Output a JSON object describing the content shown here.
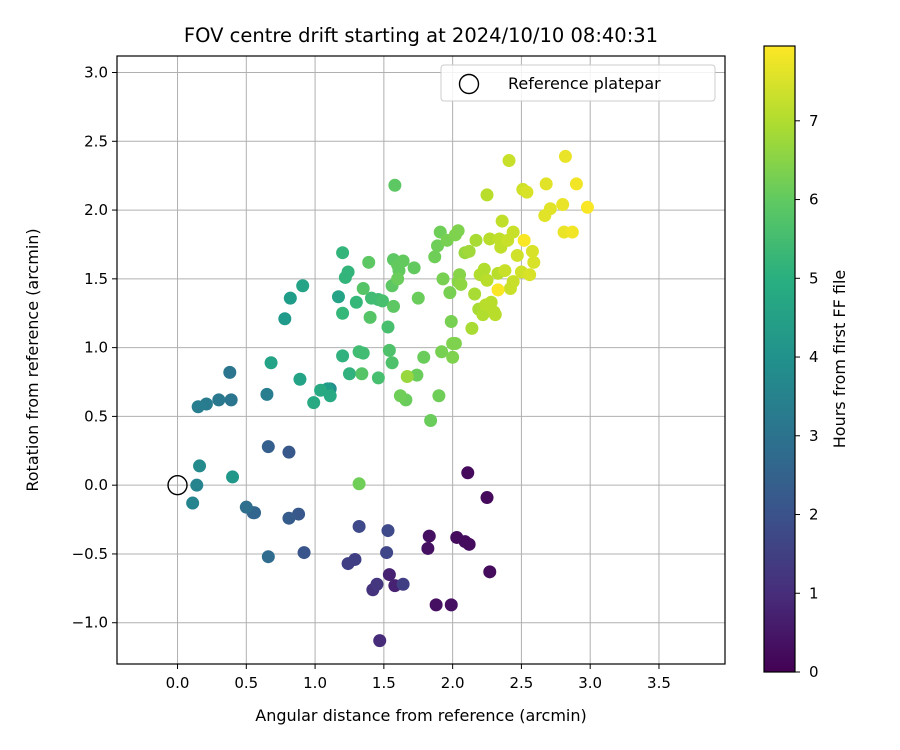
{
  "chart_data": {
    "type": "scatter",
    "title": "FOV centre drift starting at 2024/10/10 08:40:31",
    "xlabel": "Angular distance from reference (arcmin)",
    "ylabel": "Rotation from reference (arcmin)",
    "xlim": [
      -0.44,
      3.98
    ],
    "ylim": [
      -1.3,
      3.12
    ],
    "x_ticks": [
      0.0,
      0.5,
      1.0,
      1.5,
      2.0,
      2.5,
      3.0,
      3.5
    ],
    "x_tick_labels": [
      "0.0",
      "0.5",
      "1.0",
      "1.5",
      "2.0",
      "2.5",
      "3.0",
      "3.5"
    ],
    "y_ticks": [
      -1.0,
      -0.5,
      0.0,
      0.5,
      1.0,
      1.5,
      2.0,
      2.5,
      3.0
    ],
    "y_tick_labels": [
      "−1.0",
      "−0.5",
      "0.0",
      "0.5",
      "1.0",
      "1.5",
      "2.0",
      "2.5",
      "3.0"
    ],
    "grid": true,
    "legend": {
      "position": "upper-right",
      "entries": [
        "Reference platepar"
      ]
    },
    "colormap": "viridis",
    "colorbar": {
      "label": "Hours from first FF file",
      "min": 0,
      "max": 7.95,
      "ticks": [
        0,
        1,
        2,
        3,
        4,
        5,
        6,
        7
      ]
    },
    "reference_point": {
      "x": 0.0,
      "y": 0.0,
      "label": "Reference platepar"
    },
    "points": [
      {
        "x": 2.11,
        "y": 0.09,
        "h": 0.2
      },
      {
        "x": 2.25,
        "y": -0.09,
        "h": 0.2
      },
      {
        "x": 2.27,
        "y": -0.63,
        "h": 0.25
      },
      {
        "x": 2.03,
        "y": -0.38,
        "h": 0.25
      },
      {
        "x": 2.09,
        "y": -0.41,
        "h": 0.25
      },
      {
        "x": 2.12,
        "y": -0.43,
        "h": 0.25
      },
      {
        "x": 1.83,
        "y": -0.37,
        "h": 0.35
      },
      {
        "x": 1.82,
        "y": -0.46,
        "h": 0.35
      },
      {
        "x": 1.88,
        "y": -0.87,
        "h": 0.35
      },
      {
        "x": 1.99,
        "y": -0.87,
        "h": 0.35
      },
      {
        "x": 1.58,
        "y": -0.73,
        "h": 0.75
      },
      {
        "x": 1.54,
        "y": -0.65,
        "h": 0.75
      },
      {
        "x": 1.47,
        "y": -1.13,
        "h": 1.0
      },
      {
        "x": 1.42,
        "y": -0.76,
        "h": 1.15
      },
      {
        "x": 1.45,
        "y": -0.72,
        "h": 1.25
      },
      {
        "x": 1.29,
        "y": -0.54,
        "h": 1.5
      },
      {
        "x": 1.24,
        "y": -0.57,
        "h": 1.5
      },
      {
        "x": 1.64,
        "y": -0.72,
        "h": 1.5
      },
      {
        "x": 1.52,
        "y": -0.49,
        "h": 1.7
      },
      {
        "x": 1.32,
        "y": -0.3,
        "h": 1.8
      },
      {
        "x": 1.53,
        "y": -0.33,
        "h": 1.8
      },
      {
        "x": 0.92,
        "y": -0.49,
        "h": 2.1
      },
      {
        "x": 0.81,
        "y": 0.24,
        "h": 2.2
      },
      {
        "x": 0.88,
        "y": -0.21,
        "h": 2.2
      },
      {
        "x": 0.81,
        "y": -0.24,
        "h": 2.3
      },
      {
        "x": 0.66,
        "y": 0.28,
        "h": 2.4
      },
      {
        "x": 0.56,
        "y": -0.2,
        "h": 2.6
      },
      {
        "x": 0.55,
        "y": -0.2,
        "h": 2.6
      },
      {
        "x": 0.66,
        "y": -0.52,
        "h": 2.8
      },
      {
        "x": 0.5,
        "y": -0.16,
        "h": 2.9
      },
      {
        "x": 0.38,
        "y": 0.82,
        "h": 3.1
      },
      {
        "x": 0.39,
        "y": 0.62,
        "h": 3.1
      },
      {
        "x": 0.3,
        "y": 0.62,
        "h": 3.2
      },
      {
        "x": 0.21,
        "y": 0.59,
        "h": 3.3
      },
      {
        "x": 0.15,
        "y": 0.57,
        "h": 3.4
      },
      {
        "x": 0.65,
        "y": 0.66,
        "h": 3.4
      },
      {
        "x": 0.11,
        "y": -0.13,
        "h": 3.6
      },
      {
        "x": 0.14,
        "y": 0.0,
        "h": 3.6
      },
      {
        "x": 0.16,
        "y": 0.14,
        "h": 3.8
      },
      {
        "x": 0.4,
        "y": 0.06,
        "h": 4.2
      },
      {
        "x": 0.78,
        "y": 1.21,
        "h": 4.3
      },
      {
        "x": 0.82,
        "y": 1.36,
        "h": 4.4
      },
      {
        "x": 1.11,
        "y": 0.7,
        "h": 3.9
      },
      {
        "x": 1.09,
        "y": 0.7,
        "h": 4.4
      },
      {
        "x": 0.68,
        "y": 0.89,
        "h": 4.6
      },
      {
        "x": 0.91,
        "y": 1.45,
        "h": 4.6
      },
      {
        "x": 0.89,
        "y": 0.77,
        "h": 4.6
      },
      {
        "x": 1.17,
        "y": 1.37,
        "h": 4.6
      },
      {
        "x": 1.04,
        "y": 0.69,
        "h": 4.8
      },
      {
        "x": 0.99,
        "y": 0.6,
        "h": 4.8
      },
      {
        "x": 1.11,
        "y": 0.65,
        "h": 4.8
      },
      {
        "x": 1.2,
        "y": 0.94,
        "h": 5.1
      },
      {
        "x": 1.25,
        "y": 0.81,
        "h": 5.1
      },
      {
        "x": 1.2,
        "y": 1.69,
        "h": 5.2
      },
      {
        "x": 1.22,
        "y": 1.51,
        "h": 5.2
      },
      {
        "x": 1.24,
        "y": 1.55,
        "h": 5.2
      },
      {
        "x": 1.2,
        "y": 1.25,
        "h": 5.3
      },
      {
        "x": 1.3,
        "y": 1.33,
        "h": 5.3
      },
      {
        "x": 1.32,
        "y": 0.97,
        "h": 5.5
      },
      {
        "x": 1.35,
        "y": 0.96,
        "h": 5.5
      },
      {
        "x": 1.41,
        "y": 1.36,
        "h": 5.5
      },
      {
        "x": 1.46,
        "y": 1.35,
        "h": 5.5
      },
      {
        "x": 1.46,
        "y": 0.78,
        "h": 5.6
      },
      {
        "x": 1.49,
        "y": 1.34,
        "h": 5.6
      },
      {
        "x": 1.53,
        "y": 1.15,
        "h": 5.6
      },
      {
        "x": 1.54,
        "y": 0.98,
        "h": 5.7
      },
      {
        "x": 1.56,
        "y": 0.89,
        "h": 5.7
      },
      {
        "x": 1.34,
        "y": 0.81,
        "h": 5.8
      },
      {
        "x": 1.4,
        "y": 1.22,
        "h": 5.8
      },
      {
        "x": 1.35,
        "y": 1.43,
        "h": 5.8
      },
      {
        "x": 1.39,
        "y": 1.62,
        "h": 5.9
      },
      {
        "x": 1.58,
        "y": 2.18,
        "h": 5.9
      },
      {
        "x": 1.56,
        "y": 1.45,
        "h": 5.9
      },
      {
        "x": 1.57,
        "y": 1.3,
        "h": 5.9
      },
      {
        "x": 1.57,
        "y": 1.64,
        "h": 5.9
      },
      {
        "x": 1.61,
        "y": 1.56,
        "h": 6.0
      },
      {
        "x": 1.6,
        "y": 1.6,
        "h": 6.0
      },
      {
        "x": 1.64,
        "y": 1.63,
        "h": 6.0
      },
      {
        "x": 1.72,
        "y": 1.58,
        "h": 6.0
      },
      {
        "x": 1.6,
        "y": 1.5,
        "h": 6.1
      },
      {
        "x": 1.75,
        "y": 1.36,
        "h": 6.1
      },
      {
        "x": 1.79,
        "y": 0.93,
        "h": 6.1
      },
      {
        "x": 1.84,
        "y": 0.47,
        "h": 6.1
      },
      {
        "x": 1.74,
        "y": 0.8,
        "h": 6.1
      },
      {
        "x": 1.66,
        "y": 0.62,
        "h": 6.1
      },
      {
        "x": 1.62,
        "y": 0.65,
        "h": 6.2
      },
      {
        "x": 1.32,
        "y": 0.01,
        "h": 6.2
      },
      {
        "x": 1.9,
        "y": 0.65,
        "h": 6.2
      },
      {
        "x": 1.87,
        "y": 1.66,
        "h": 6.2
      },
      {
        "x": 1.89,
        "y": 1.74,
        "h": 6.2
      },
      {
        "x": 1.91,
        "y": 1.84,
        "h": 6.2
      },
      {
        "x": 1.93,
        "y": 1.5,
        "h": 6.3
      },
      {
        "x": 1.92,
        "y": 0.97,
        "h": 6.3
      },
      {
        "x": 1.96,
        "y": 1.78,
        "h": 6.3
      },
      {
        "x": 1.98,
        "y": 1.4,
        "h": 6.3
      },
      {
        "x": 1.99,
        "y": 1.19,
        "h": 6.3
      },
      {
        "x": 2.0,
        "y": 1.03,
        "h": 6.4
      },
      {
        "x": 2.0,
        "y": 0.93,
        "h": 6.4
      },
      {
        "x": 2.02,
        "y": 1.03,
        "h": 6.4
      },
      {
        "x": 2.02,
        "y": 1.82,
        "h": 6.4
      },
      {
        "x": 2.04,
        "y": 1.85,
        "h": 6.4
      },
      {
        "x": 2.04,
        "y": 1.48,
        "h": 6.5
      },
      {
        "x": 2.05,
        "y": 1.53,
        "h": 6.5
      },
      {
        "x": 2.06,
        "y": 1.46,
        "h": 6.6
      },
      {
        "x": 1.67,
        "y": 0.79,
        "h": 6.7
      },
      {
        "x": 2.09,
        "y": 1.69,
        "h": 6.7
      },
      {
        "x": 2.12,
        "y": 1.7,
        "h": 6.8
      },
      {
        "x": 2.14,
        "y": 1.14,
        "h": 6.9
      },
      {
        "x": 2.16,
        "y": 1.39,
        "h": 6.9
      },
      {
        "x": 2.17,
        "y": 1.78,
        "h": 6.9
      },
      {
        "x": 2.19,
        "y": 1.28,
        "h": 6.9
      },
      {
        "x": 2.2,
        "y": 1.53,
        "h": 7.0
      },
      {
        "x": 2.22,
        "y": 1.24,
        "h": 7.0
      },
      {
        "x": 2.23,
        "y": 1.57,
        "h": 7.0
      },
      {
        "x": 2.24,
        "y": 1.31,
        "h": 7.1
      },
      {
        "x": 2.25,
        "y": 1.49,
        "h": 7.1
      },
      {
        "x": 2.25,
        "y": 2.11,
        "h": 7.1
      },
      {
        "x": 2.27,
        "y": 1.79,
        "h": 7.1
      },
      {
        "x": 2.28,
        "y": 1.33,
        "h": 7.1
      },
      {
        "x": 2.3,
        "y": 1.26,
        "h": 7.1
      },
      {
        "x": 2.31,
        "y": 1.24,
        "h": 7.1
      },
      {
        "x": 2.33,
        "y": 1.54,
        "h": 7.1
      },
      {
        "x": 2.34,
        "y": 1.79,
        "h": 7.2
      },
      {
        "x": 2.35,
        "y": 1.73,
        "h": 7.2
      },
      {
        "x": 2.36,
        "y": 1.92,
        "h": 7.2
      },
      {
        "x": 2.38,
        "y": 1.56,
        "h": 7.3
      },
      {
        "x": 2.4,
        "y": 1.78,
        "h": 7.3
      },
      {
        "x": 2.41,
        "y": 2.36,
        "h": 7.3
      },
      {
        "x": 2.42,
        "y": 1.43,
        "h": 7.3
      },
      {
        "x": 2.44,
        "y": 1.48,
        "h": 7.3
      },
      {
        "x": 2.44,
        "y": 1.84,
        "h": 7.3
      },
      {
        "x": 2.47,
        "y": 1.67,
        "h": 7.4
      },
      {
        "x": 2.5,
        "y": 1.55,
        "h": 7.4
      },
      {
        "x": 2.51,
        "y": 2.15,
        "h": 7.4
      },
      {
        "x": 2.54,
        "y": 2.13,
        "h": 7.5
      },
      {
        "x": 2.56,
        "y": 1.53,
        "h": 7.5
      },
      {
        "x": 2.58,
        "y": 1.7,
        "h": 7.5
      },
      {
        "x": 2.59,
        "y": 1.62,
        "h": 7.5
      },
      {
        "x": 2.67,
        "y": 1.96,
        "h": 7.6
      },
      {
        "x": 2.68,
        "y": 2.19,
        "h": 7.6
      },
      {
        "x": 2.71,
        "y": 2.01,
        "h": 7.6
      },
      {
        "x": 2.8,
        "y": 2.04,
        "h": 7.7
      },
      {
        "x": 2.81,
        "y": 1.84,
        "h": 7.7
      },
      {
        "x": 2.82,
        "y": 2.39,
        "h": 7.7
      },
      {
        "x": 2.87,
        "y": 1.84,
        "h": 7.8
      },
      {
        "x": 2.9,
        "y": 2.19,
        "h": 7.8
      },
      {
        "x": 2.98,
        "y": 2.02,
        "h": 7.9
      },
      {
        "x": 2.33,
        "y": 1.42,
        "h": 7.9
      },
      {
        "x": 2.52,
        "y": 1.78,
        "h": 7.9
      }
    ]
  }
}
